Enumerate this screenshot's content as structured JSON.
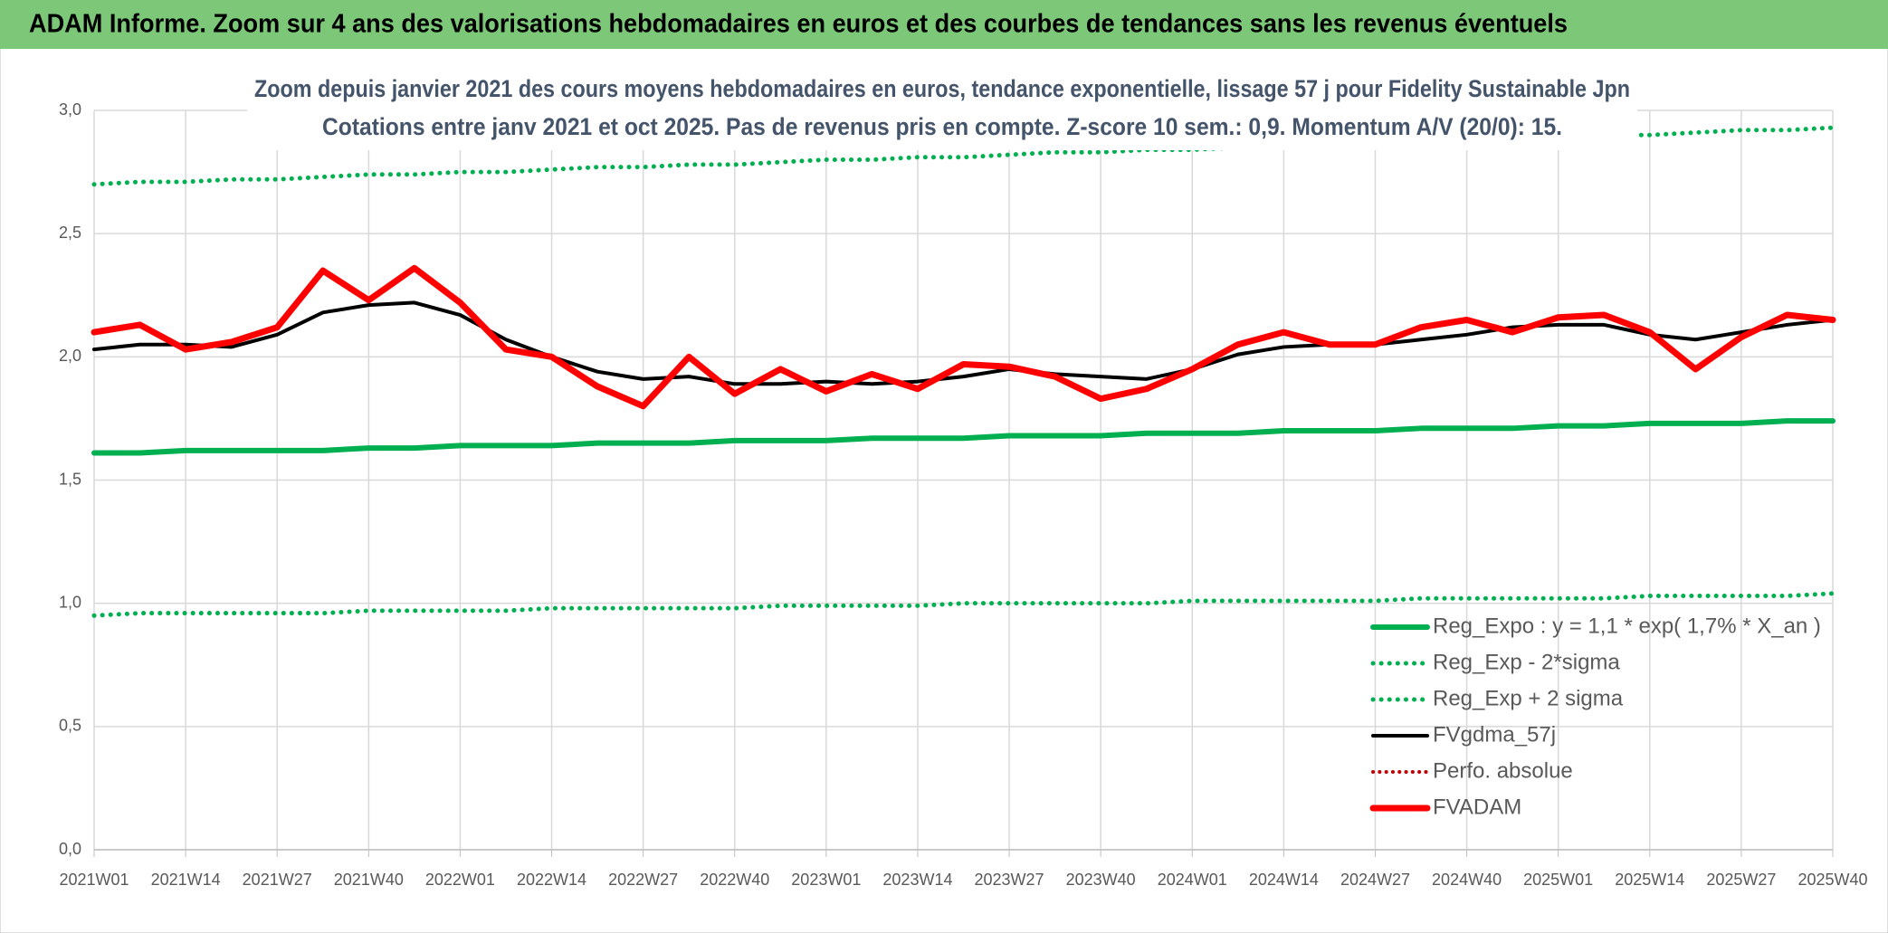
{
  "header": "ADAM Informe. Zoom sur 4 ans des valorisations hebdomadaires en euros et des courbes de tendances sans les revenus éventuels",
  "chart_data": {
    "type": "line",
    "title": "Zoom depuis janvier 2021 des cours moyens hebdomadaires en euros, tendance exponentielle, lissage 57 j pour Fidelity Sustainable Jpn",
    "subtitle": "Cotations entre janv 2021 et oct 2025. Pas de revenus pris en compte. Z-score 10 sem.: 0,9. Momentum A/V (20/0): 15.",
    "categories": [
      "2021W01",
      null,
      "2021W14",
      null,
      "2021W27",
      null,
      "2021W40",
      null,
      "2022W01",
      null,
      "2022W14",
      null,
      "2022W27",
      null,
      "2022W40",
      null,
      "2023W01",
      null,
      "2023W14",
      null,
      "2023W27",
      null,
      "2023W40",
      null,
      "2024W01",
      null,
      "2024W14",
      null,
      "2024W27",
      null,
      "2024W40",
      null,
      "2025W01",
      null,
      "2025W14",
      null,
      "2025W27",
      null,
      "2025W40"
    ],
    "ylim": [
      0,
      3
    ],
    "yticks": [
      {
        "value": 0,
        "label": "0,0"
      },
      {
        "value": 0.5,
        "label": "0,5"
      },
      {
        "value": 1,
        "label": "1,0"
      },
      {
        "value": 1.5,
        "label": "1,5"
      },
      {
        "value": 2,
        "label": "2,0"
      },
      {
        "value": 2.5,
        "label": "2,5"
      },
      {
        "value": 3,
        "label": "3,0"
      }
    ],
    "grid": true,
    "legend": "lower right",
    "series": [
      {
        "name": "Reg_Expo : y = 1,1 * exp( 1,7% *  X_an )",
        "color": "#00b050",
        "dotted": false,
        "width": 6,
        "values": [
          1.61,
          1.61,
          1.62,
          1.62,
          1.62,
          1.62,
          1.63,
          1.63,
          1.64,
          1.64,
          1.64,
          1.65,
          1.65,
          1.65,
          1.66,
          1.66,
          1.66,
          1.67,
          1.67,
          1.67,
          1.68,
          1.68,
          1.68,
          1.69,
          1.69,
          1.69,
          1.7,
          1.7,
          1.7,
          1.71,
          1.71,
          1.71,
          1.72,
          1.72,
          1.73,
          1.73,
          1.73,
          1.74,
          1.74
        ]
      },
      {
        "name": "Reg_Exp - 2*sigma",
        "color": "#00b050",
        "dotted": true,
        "width": 5,
        "values": [
          0.95,
          0.96,
          0.96,
          0.96,
          0.96,
          0.96,
          0.97,
          0.97,
          0.97,
          0.97,
          0.98,
          0.98,
          0.98,
          0.98,
          0.98,
          0.99,
          0.99,
          0.99,
          0.99,
          1.0,
          1.0,
          1.0,
          1.0,
          1.0,
          1.01,
          1.01,
          1.01,
          1.01,
          1.01,
          1.02,
          1.02,
          1.02,
          1.02,
          1.02,
          1.03,
          1.03,
          1.03,
          1.03,
          1.04
        ]
      },
      {
        "name": "Reg_Exp + 2 sigma",
        "color": "#00b050",
        "dotted": true,
        "width": 5,
        "values": [
          2.7,
          2.71,
          2.71,
          2.72,
          2.72,
          2.73,
          2.74,
          2.74,
          2.75,
          2.75,
          2.76,
          2.77,
          2.77,
          2.78,
          2.78,
          2.79,
          2.8,
          2.8,
          2.81,
          2.81,
          2.82,
          2.83,
          2.83,
          2.84,
          2.84,
          2.85,
          2.86,
          2.86,
          2.87,
          2.87,
          2.88,
          2.89,
          2.89,
          2.9,
          2.9,
          2.91,
          2.92,
          2.92,
          2.93
        ]
      },
      {
        "name": "FVgdma_57j",
        "color": "#000000",
        "dotted": false,
        "width": 4,
        "values": [
          2.03,
          2.05,
          2.05,
          2.04,
          2.09,
          2.18,
          2.21,
          2.22,
          2.17,
          2.07,
          2.0,
          1.94,
          1.91,
          1.92,
          1.89,
          1.89,
          1.9,
          1.89,
          1.9,
          1.92,
          1.95,
          1.93,
          1.92,
          1.91,
          1.95,
          2.01,
          2.04,
          2.05,
          2.05,
          2.07,
          2.09,
          2.12,
          2.13,
          2.13,
          2.09,
          2.07,
          2.1,
          2.13,
          2.15
        ]
      },
      {
        "name": "Perfo. absolue",
        "color": "#c00000",
        "dotted": true,
        "width": 4,
        "values": [
          null,
          null,
          null,
          null,
          null,
          null,
          null,
          null,
          null,
          null,
          null,
          null,
          null,
          null,
          null,
          null,
          null,
          null,
          null,
          null,
          null,
          null,
          null,
          null,
          null,
          null,
          null,
          null,
          null,
          null,
          null,
          null,
          null,
          null,
          null,
          null,
          null,
          null,
          null
        ]
      },
      {
        "name": "FVADAM",
        "color": "#ff0000",
        "dotted": false,
        "width": 7,
        "values": [
          2.1,
          2.13,
          2.03,
          2.06,
          2.12,
          2.35,
          2.23,
          2.36,
          2.22,
          2.03,
          2.0,
          1.88,
          1.8,
          2.0,
          1.85,
          1.95,
          1.86,
          1.93,
          1.87,
          1.97,
          1.96,
          1.92,
          1.83,
          1.87,
          1.95,
          2.05,
          2.1,
          2.05,
          2.05,
          2.12,
          2.15,
          2.1,
          2.16,
          2.17,
          2.1,
          1.95,
          2.08,
          2.17,
          2.15
        ]
      }
    ]
  }
}
